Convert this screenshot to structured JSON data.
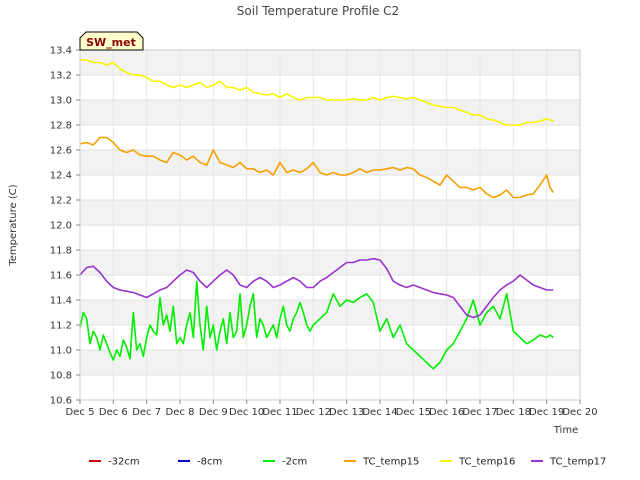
{
  "chart_data": {
    "type": "line",
    "title": "Soil Temperature Profile C2",
    "xlabel": "Time",
    "ylabel": "Temperature (C)",
    "tag": "SW_met",
    "xlim": [
      5,
      20
    ],
    "ylim": [
      10.6,
      13.4
    ],
    "x_tick_values": [
      5,
      6,
      7,
      8,
      9,
      10,
      11,
      12,
      13,
      14,
      15,
      16,
      17,
      18,
      19,
      20
    ],
    "x_tick_labels": [
      "Dec 5",
      "Dec 6",
      "Dec 7",
      "Dec 8",
      "Dec 9",
      "Dec 10",
      "Dec 11",
      "Dec 12",
      "Dec 13",
      "Dec 14",
      "Dec 15",
      "Dec 16",
      "Dec 17",
      "Dec 18",
      "Dec 19",
      "Dec 20"
    ],
    "y_ticks": [
      10.6,
      10.8,
      11.0,
      11.2,
      11.4,
      11.6,
      11.8,
      12.0,
      12.2,
      12.4,
      12.6,
      12.8,
      13.0,
      13.2,
      13.4
    ],
    "y_tick_labels": [
      "10.6",
      "10.8",
      "11.0",
      "11.2",
      "11.4",
      "11.6",
      "11.8",
      "12.0",
      "12.2",
      "12.4",
      "12.6",
      "12.8",
      "13.0",
      "13.2",
      "13.4"
    ],
    "grid": true,
    "legend_position": "bottom",
    "series": [
      {
        "name": "-32cm",
        "color": "#cc0000",
        "x": [],
        "values": []
      },
      {
        "name": "-8cm",
        "color": "#0000cc",
        "x": [],
        "values": []
      },
      {
        "name": "-2cm",
        "color": "#00ee00",
        "x": [
          5.0,
          5.1,
          5.2,
          5.3,
          5.4,
          5.5,
          5.6,
          5.7,
          5.8,
          5.9,
          6.0,
          6.1,
          6.2,
          6.3,
          6.4,
          6.5,
          6.6,
          6.7,
          6.8,
          6.9,
          7.0,
          7.1,
          7.2,
          7.3,
          7.4,
          7.5,
          7.6,
          7.7,
          7.8,
          7.9,
          8.0,
          8.1,
          8.2,
          8.3,
          8.4,
          8.5,
          8.6,
          8.7,
          8.8,
          8.9,
          9.0,
          9.1,
          9.2,
          9.3,
          9.4,
          9.5,
          9.6,
          9.7,
          9.8,
          9.9,
          10.0,
          10.1,
          10.2,
          10.3,
          10.4,
          10.5,
          10.6,
          10.7,
          10.8,
          10.9,
          11.0,
          11.1,
          11.2,
          11.3,
          11.4,
          11.5,
          11.6,
          11.7,
          11.8,
          11.9,
          12.0,
          12.2,
          12.4,
          12.6,
          12.8,
          13.0,
          13.2,
          13.4,
          13.6,
          13.8,
          14.0,
          14.2,
          14.4,
          14.6,
          14.8,
          15.0,
          15.2,
          15.4,
          15.6,
          15.8,
          16.0,
          16.2,
          16.4,
          16.6,
          16.8,
          17.0,
          17.2,
          17.4,
          17.6,
          17.8,
          18.0,
          18.2,
          18.4,
          18.6,
          18.8,
          19.0,
          19.1,
          19.2
        ],
        "values": [
          11.18,
          11.3,
          11.25,
          11.05,
          11.15,
          11.1,
          11.0,
          11.12,
          11.05,
          10.98,
          10.92,
          11.0,
          10.95,
          11.08,
          11.02,
          10.93,
          11.3,
          11.0,
          11.05,
          10.95,
          11.1,
          11.2,
          11.15,
          11.12,
          11.42,
          11.2,
          11.28,
          11.15,
          11.35,
          11.05,
          11.1,
          11.05,
          11.2,
          11.3,
          11.1,
          11.55,
          11.2,
          11.0,
          11.35,
          11.1,
          11.2,
          11.0,
          11.15,
          11.25,
          11.05,
          11.3,
          11.1,
          11.15,
          11.45,
          11.1,
          11.2,
          11.35,
          11.45,
          11.1,
          11.25,
          11.2,
          11.1,
          11.15,
          11.2,
          11.1,
          11.25,
          11.35,
          11.2,
          11.15,
          11.25,
          11.3,
          11.38,
          11.3,
          11.2,
          11.15,
          11.2,
          11.25,
          11.3,
          11.45,
          11.35,
          11.4,
          11.38,
          11.42,
          11.45,
          11.38,
          11.15,
          11.25,
          11.1,
          11.2,
          11.05,
          11.0,
          10.95,
          10.9,
          10.85,
          10.9,
          11.0,
          11.05,
          11.15,
          11.25,
          11.4,
          11.2,
          11.3,
          11.35,
          11.25,
          11.45,
          11.15,
          11.1,
          11.05,
          11.08,
          11.12,
          11.1,
          11.12,
          11.1
        ]
      },
      {
        "name": "TC_temp15",
        "color": "#f5a000",
        "x": [
          5.0,
          5.2,
          5.4,
          5.6,
          5.8,
          6.0,
          6.2,
          6.4,
          6.6,
          6.8,
          7.0,
          7.2,
          7.4,
          7.6,
          7.8,
          8.0,
          8.2,
          8.4,
          8.6,
          8.8,
          9.0,
          9.2,
          9.4,
          9.6,
          9.8,
          10.0,
          10.2,
          10.4,
          10.6,
          10.8,
          11.0,
          11.2,
          11.4,
          11.6,
          11.8,
          12.0,
          12.2,
          12.4,
          12.6,
          12.8,
          13.0,
          13.2,
          13.4,
          13.6,
          13.8,
          14.0,
          14.2,
          14.4,
          14.6,
          14.8,
          15.0,
          15.2,
          15.4,
          15.6,
          15.8,
          16.0,
          16.2,
          16.4,
          16.6,
          16.8,
          17.0,
          17.2,
          17.4,
          17.6,
          17.8,
          18.0,
          18.2,
          18.4,
          18.6,
          18.8,
          19.0,
          19.1,
          19.2
        ],
        "values": [
          12.65,
          12.66,
          12.64,
          12.7,
          12.7,
          12.66,
          12.6,
          12.58,
          12.6,
          12.56,
          12.55,
          12.55,
          12.52,
          12.5,
          12.58,
          12.56,
          12.52,
          12.55,
          12.5,
          12.48,
          12.6,
          12.5,
          12.48,
          12.46,
          12.5,
          12.45,
          12.45,
          12.42,
          12.44,
          12.4,
          12.5,
          12.42,
          12.44,
          12.42,
          12.45,
          12.5,
          12.42,
          12.4,
          12.42,
          12.4,
          12.4,
          12.42,
          12.45,
          12.42,
          12.44,
          12.44,
          12.45,
          12.46,
          12.44,
          12.46,
          12.45,
          12.4,
          12.38,
          12.35,
          12.32,
          12.4,
          12.35,
          12.3,
          12.3,
          12.28,
          12.3,
          12.25,
          12.22,
          12.24,
          12.28,
          12.22,
          12.22,
          12.24,
          12.25,
          12.32,
          12.4,
          12.3,
          12.26
        ]
      },
      {
        "name": "TC_temp16",
        "color": "#f5f500",
        "x": [
          5.0,
          5.2,
          5.4,
          5.6,
          5.8,
          6.0,
          6.2,
          6.4,
          6.6,
          6.8,
          7.0,
          7.2,
          7.4,
          7.6,
          7.8,
          8.0,
          8.2,
          8.4,
          8.6,
          8.8,
          9.0,
          9.2,
          9.4,
          9.6,
          9.8,
          10.0,
          10.2,
          10.4,
          10.6,
          10.8,
          11.0,
          11.2,
          11.4,
          11.6,
          11.8,
          12.0,
          12.2,
          12.4,
          12.6,
          12.8,
          13.0,
          13.2,
          13.4,
          13.6,
          13.8,
          14.0,
          14.2,
          14.4,
          14.6,
          14.8,
          15.0,
          15.2,
          15.4,
          15.6,
          15.8,
          16.0,
          16.2,
          16.4,
          16.6,
          16.8,
          17.0,
          17.2,
          17.4,
          17.6,
          17.8,
          18.0,
          18.2,
          18.4,
          18.6,
          18.8,
          19.0,
          19.1,
          19.2
        ],
        "values": [
          13.32,
          13.32,
          13.3,
          13.3,
          13.28,
          13.3,
          13.25,
          13.22,
          13.2,
          13.2,
          13.18,
          13.15,
          13.15,
          13.12,
          13.1,
          13.12,
          13.1,
          13.12,
          13.14,
          13.1,
          13.12,
          13.15,
          13.1,
          13.1,
          13.08,
          13.1,
          13.06,
          13.05,
          13.04,
          13.05,
          13.02,
          13.05,
          13.02,
          13.0,
          13.02,
          13.02,
          13.02,
          13.0,
          13.0,
          13.0,
          13.0,
          13.01,
          13.0,
          13.0,
          13.02,
          13.0,
          13.02,
          13.03,
          13.02,
          13.01,
          13.02,
          13.0,
          12.98,
          12.96,
          12.95,
          12.94,
          12.94,
          12.92,
          12.9,
          12.88,
          12.88,
          12.85,
          12.84,
          12.82,
          12.8,
          12.8,
          12.8,
          12.82,
          12.82,
          12.83,
          12.85,
          12.84,
          12.83
        ]
      },
      {
        "name": "TC_temp17",
        "color": "#9a32cd",
        "x": [
          5.0,
          5.2,
          5.4,
          5.6,
          5.8,
          6.0,
          6.2,
          6.4,
          6.6,
          6.8,
          7.0,
          7.2,
          7.4,
          7.6,
          7.8,
          8.0,
          8.2,
          8.4,
          8.6,
          8.8,
          9.0,
          9.2,
          9.4,
          9.6,
          9.8,
          10.0,
          10.2,
          10.4,
          10.6,
          10.8,
          11.0,
          11.2,
          11.4,
          11.6,
          11.8,
          12.0,
          12.2,
          12.4,
          12.6,
          12.8,
          13.0,
          13.2,
          13.4,
          13.6,
          13.8,
          14.0,
          14.2,
          14.4,
          14.6,
          14.8,
          15.0,
          15.2,
          15.4,
          15.6,
          15.8,
          16.0,
          16.2,
          16.4,
          16.6,
          16.8,
          17.0,
          17.2,
          17.4,
          17.6,
          17.8,
          18.0,
          18.2,
          18.4,
          18.6,
          18.8,
          19.0,
          19.1,
          19.2
        ],
        "values": [
          11.6,
          11.66,
          11.67,
          11.62,
          11.55,
          11.5,
          11.48,
          11.47,
          11.46,
          11.44,
          11.42,
          11.45,
          11.48,
          11.5,
          11.55,
          11.6,
          11.64,
          11.62,
          11.55,
          11.5,
          11.55,
          11.6,
          11.64,
          11.6,
          11.52,
          11.5,
          11.55,
          11.58,
          11.55,
          11.5,
          11.52,
          11.55,
          11.58,
          11.55,
          11.5,
          11.5,
          11.55,
          11.58,
          11.62,
          11.66,
          11.7,
          11.7,
          11.72,
          11.72,
          11.73,
          11.72,
          11.65,
          11.55,
          11.52,
          11.5,
          11.52,
          11.5,
          11.48,
          11.46,
          11.45,
          11.44,
          11.42,
          11.35,
          11.28,
          11.26,
          11.28,
          11.35,
          11.42,
          11.48,
          11.52,
          11.55,
          11.6,
          11.56,
          11.52,
          11.5,
          11.48,
          11.48,
          11.48
        ]
      }
    ]
  }
}
